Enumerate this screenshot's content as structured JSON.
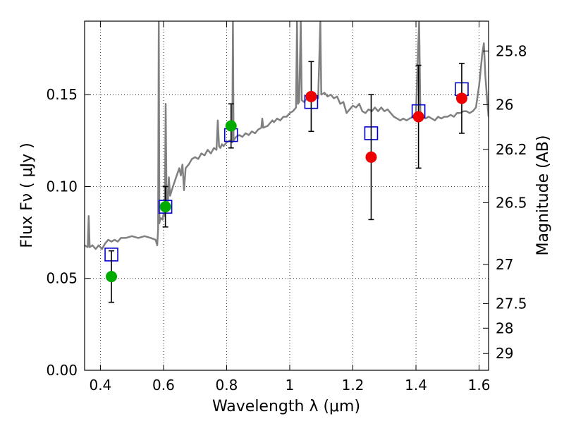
{
  "chart_data": {
    "type": "scatter",
    "xlabel": "Wavelength  λ (μm)",
    "ylabel_left": "Flux  Fν  ( μJy )",
    "ylabel_right": "Magnitude (AB)",
    "xlim": [
      0.35,
      1.63
    ],
    "ylim": [
      0.0,
      0.19
    ],
    "x_ticks": [
      0.4,
      0.6,
      0.8,
      1.0,
      1.2,
      1.4,
      1.6
    ],
    "x_tick_labels": [
      "0.4",
      "0.6",
      "0.8",
      "1",
      "1.2",
      "1.4",
      "1.6"
    ],
    "y_ticks": [
      0.0,
      0.05,
      0.1,
      0.15
    ],
    "y_tick_labels": [
      "0.00",
      "0.05",
      "0.10",
      "0.15"
    ],
    "right_ticks": [
      25.8,
      26,
      26.2,
      26.5,
      27,
      27.5,
      28,
      29
    ],
    "right_tick_labels": [
      "25.8",
      "26",
      "26.2",
      "26.5",
      "27",
      "27.5",
      "28",
      "29"
    ],
    "grid": true,
    "colors": {
      "spectrum": "#808080",
      "model_box": "#0000cc",
      "green_points": "#00aa00",
      "red_points": "#ee0000",
      "errorbar": "#000000"
    },
    "model_boxes": [
      {
        "x": 0.435,
        "y": 0.063
      },
      {
        "x": 0.606,
        "y": 0.089
      },
      {
        "x": 0.814,
        "y": 0.128
      },
      {
        "x": 1.068,
        "y": 0.146
      },
      {
        "x": 1.258,
        "y": 0.129
      },
      {
        "x": 1.408,
        "y": 0.141
      },
      {
        "x": 1.545,
        "y": 0.153
      }
    ],
    "observed_green": [
      {
        "x": 0.435,
        "y": 0.051,
        "err": 0.014
      },
      {
        "x": 0.606,
        "y": 0.089,
        "err": 0.011
      },
      {
        "x": 0.814,
        "y": 0.133,
        "err": 0.012
      }
    ],
    "observed_red": [
      {
        "x": 1.068,
        "y": 0.149,
        "err": 0.019
      },
      {
        "x": 1.258,
        "y": 0.116,
        "err": 0.034
      },
      {
        "x": 1.408,
        "y": 0.138,
        "err": 0.028
      },
      {
        "x": 1.545,
        "y": 0.148,
        "err": 0.019
      }
    ],
    "spectrum": [
      [
        0.35,
        0.068
      ],
      [
        0.36,
        0.067
      ],
      [
        0.363,
        0.084
      ],
      [
        0.366,
        0.067
      ],
      [
        0.375,
        0.068
      ],
      [
        0.385,
        0.066
      ],
      [
        0.395,
        0.068
      ],
      [
        0.405,
        0.066
      ],
      [
        0.415,
        0.069
      ],
      [
        0.425,
        0.071
      ],
      [
        0.435,
        0.07
      ],
      [
        0.445,
        0.071
      ],
      [
        0.455,
        0.07
      ],
      [
        0.465,
        0.072
      ],
      [
        0.48,
        0.072
      ],
      [
        0.5,
        0.073
      ],
      [
        0.52,
        0.072
      ],
      [
        0.54,
        0.073
      ],
      [
        0.56,
        0.072
      ],
      [
        0.575,
        0.071
      ],
      [
        0.58,
        0.068
      ],
      [
        0.583,
        0.077
      ],
      [
        0.585,
        0.19
      ],
      [
        0.587,
        0.08
      ],
      [
        0.59,
        0.083
      ],
      [
        0.597,
        0.082
      ],
      [
        0.6,
        0.085
      ],
      [
        0.604,
        0.084
      ],
      [
        0.607,
        0.145
      ],
      [
        0.61,
        0.088
      ],
      [
        0.614,
        0.092
      ],
      [
        0.617,
        0.105
      ],
      [
        0.621,
        0.095
      ],
      [
        0.63,
        0.1
      ],
      [
        0.64,
        0.105
      ],
      [
        0.65,
        0.11
      ],
      [
        0.655,
        0.106
      ],
      [
        0.66,
        0.112
      ],
      [
        0.665,
        0.098
      ],
      [
        0.67,
        0.11
      ],
      [
        0.68,
        0.112
      ],
      [
        0.69,
        0.115
      ],
      [
        0.7,
        0.116
      ],
      [
        0.71,
        0.115
      ],
      [
        0.72,
        0.118
      ],
      [
        0.73,
        0.117
      ],
      [
        0.74,
        0.12
      ],
      [
        0.75,
        0.118
      ],
      [
        0.76,
        0.121
      ],
      [
        0.768,
        0.12
      ],
      [
        0.772,
        0.136
      ],
      [
        0.776,
        0.122
      ],
      [
        0.78,
        0.121
      ],
      [
        0.785,
        0.123
      ],
      [
        0.79,
        0.122
      ],
      [
        0.8,
        0.124
      ],
      [
        0.81,
        0.125
      ],
      [
        0.818,
        0.124
      ],
      [
        0.82,
        0.19
      ],
      [
        0.822,
        0.125
      ],
      [
        0.83,
        0.127
      ],
      [
        0.84,
        0.128
      ],
      [
        0.85,
        0.127
      ],
      [
        0.86,
        0.129
      ],
      [
        0.87,
        0.128
      ],
      [
        0.88,
        0.13
      ],
      [
        0.89,
        0.129
      ],
      [
        0.9,
        0.131
      ],
      [
        0.91,
        0.132
      ],
      [
        0.913,
        0.137
      ],
      [
        0.916,
        0.132
      ],
      [
        0.93,
        0.133
      ],
      [
        0.945,
        0.136
      ],
      [
        0.95,
        0.135
      ],
      [
        0.96,
        0.137
      ],
      [
        0.97,
        0.136
      ],
      [
        0.98,
        0.138
      ],
      [
        0.99,
        0.138
      ],
      [
        1.0,
        0.14
      ],
      [
        1.01,
        0.141
      ],
      [
        1.02,
        0.143
      ],
      [
        1.023,
        0.19
      ],
      [
        1.026,
        0.145
      ],
      [
        1.03,
        0.146
      ],
      [
        1.035,
        0.19
      ],
      [
        1.038,
        0.147
      ],
      [
        1.045,
        0.146
      ],
      [
        1.055,
        0.148
      ],
      [
        1.065,
        0.147
      ],
      [
        1.08,
        0.149
      ],
      [
        1.09,
        0.148
      ],
      [
        1.097,
        0.19
      ],
      [
        1.1,
        0.15
      ],
      [
        1.11,
        0.151
      ],
      [
        1.12,
        0.149
      ],
      [
        1.13,
        0.15
      ],
      [
        1.14,
        0.148
      ],
      [
        1.15,
        0.149
      ],
      [
        1.16,
        0.145
      ],
      [
        1.17,
        0.146
      ],
      [
        1.18,
        0.14
      ],
      [
        1.19,
        0.142
      ],
      [
        1.2,
        0.144
      ],
      [
        1.21,
        0.143
      ],
      [
        1.22,
        0.145
      ],
      [
        1.23,
        0.141
      ],
      [
        1.24,
        0.14
      ],
      [
        1.25,
        0.142
      ],
      [
        1.26,
        0.141
      ],
      [
        1.27,
        0.143
      ],
      [
        1.28,
        0.141
      ],
      [
        1.29,
        0.143
      ],
      [
        1.3,
        0.141
      ],
      [
        1.31,
        0.142
      ],
      [
        1.32,
        0.14
      ],
      [
        1.33,
        0.138
      ],
      [
        1.34,
        0.137
      ],
      [
        1.35,
        0.136
      ],
      [
        1.36,
        0.137
      ],
      [
        1.37,
        0.136
      ],
      [
        1.38,
        0.137
      ],
      [
        1.39,
        0.138
      ],
      [
        1.4,
        0.14
      ],
      [
        1.41,
        0.19
      ],
      [
        1.414,
        0.139
      ],
      [
        1.42,
        0.138
      ],
      [
        1.43,
        0.137
      ],
      [
        1.44,
        0.138
      ],
      [
        1.45,
        0.137
      ],
      [
        1.46,
        0.136
      ],
      [
        1.47,
        0.138
      ],
      [
        1.48,
        0.137
      ],
      [
        1.49,
        0.138
      ],
      [
        1.5,
        0.138
      ],
      [
        1.51,
        0.139
      ],
      [
        1.52,
        0.138
      ],
      [
        1.53,
        0.14
      ],
      [
        1.54,
        0.14
      ],
      [
        1.55,
        0.141
      ],
      [
        1.56,
        0.141
      ],
      [
        1.57,
        0.14
      ],
      [
        1.58,
        0.141
      ],
      [
        1.59,
        0.143
      ],
      [
        1.6,
        0.155
      ],
      [
        1.61,
        0.172
      ],
      [
        1.615,
        0.178
      ],
      [
        1.62,
        0.16
      ],
      [
        1.625,
        0.148
      ],
      [
        1.63,
        0.138
      ]
    ]
  }
}
